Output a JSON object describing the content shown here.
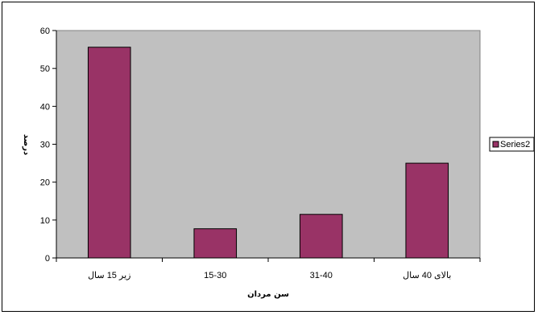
{
  "chart_data": {
    "type": "bar",
    "categories": [
      "زیر 15 سال",
      "15-30",
      "31-40",
      "بالای 40 سال"
    ],
    "series": [
      {
        "name": "Series2",
        "values": [
          55.6,
          7.7,
          11.5,
          25.0
        ],
        "color": "#993366"
      }
    ],
    "xlabel": "سن مردان",
    "ylabel": "درصد",
    "ylim": [
      0,
      60
    ],
    "yticks": [
      0,
      10,
      20,
      30,
      40,
      50,
      60
    ],
    "plot_background": "#c0c0c0",
    "grid": false,
    "legend_position": "right"
  }
}
